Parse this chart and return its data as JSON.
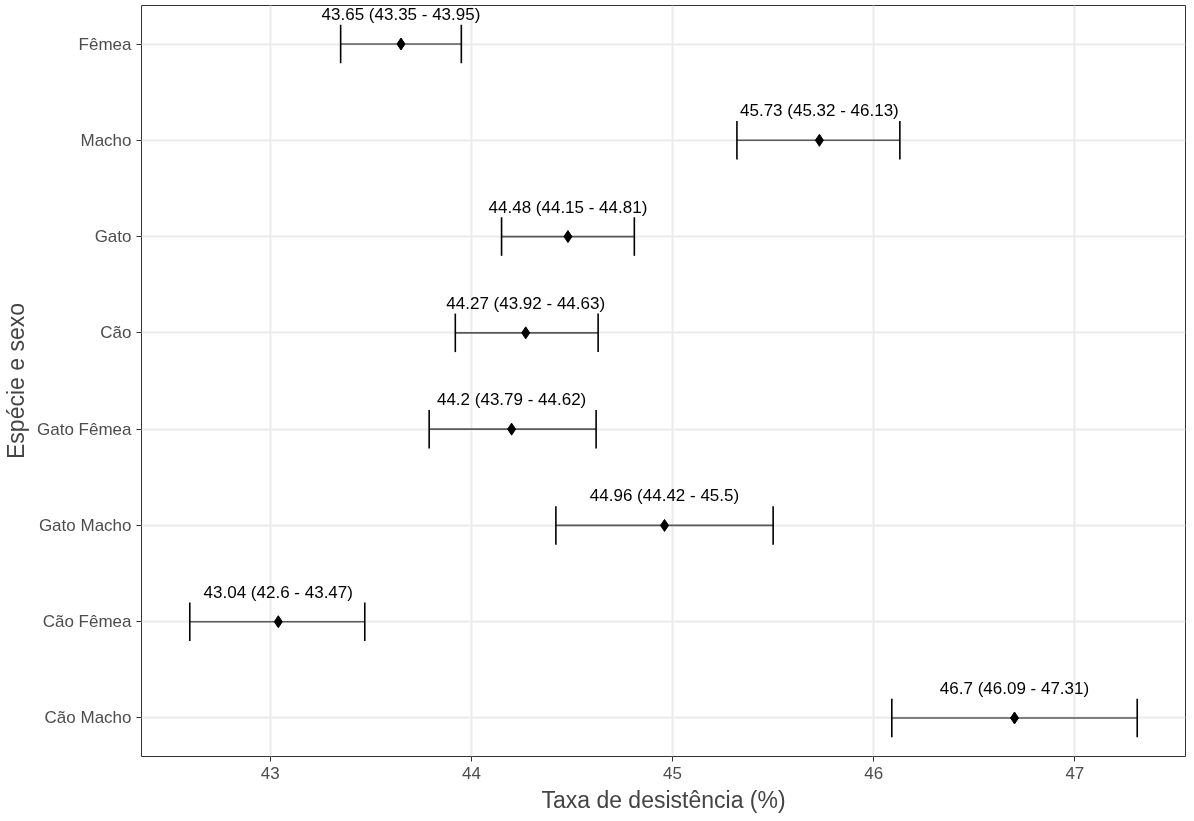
{
  "chart_data": {
    "type": "scatter",
    "orientation": "horizontal",
    "xlabel": "Taxa de desistência (%)",
    "ylabel": "Espécie e sexo",
    "categories": [
      "Fêmea",
      "Macho",
      "Gato",
      "Cão",
      "Gato Fêmea",
      "Gato Macho",
      "Cão Fêmea",
      "Cão Macho"
    ],
    "color": "#000000",
    "values": [
      43.65,
      45.73,
      44.48,
      44.27,
      44.2,
      44.96,
      43.04,
      46.7
    ],
    "errors": [
      [
        43.35,
        43.95
      ],
      [
        45.32,
        46.13
      ],
      [
        44.15,
        44.81
      ],
      [
        43.92,
        44.63
      ],
      [
        43.79,
        44.62
      ],
      [
        44.42,
        45.5
      ],
      [
        42.6,
        43.47
      ],
      [
        46.09,
        47.31
      ]
    ],
    "value_labels": [
      "43.65 (43.35 - 43.95)",
      "45.73 (45.32 - 46.13)",
      "44.48 (44.15 - 44.81)",
      "44.27 (43.92 - 44.63)",
      "44.2 (43.79 - 44.62)",
      "44.96 (44.42 - 45.5)",
      "43.04 (42.6 - 43.47)",
      "46.7 (46.09 - 47.31)"
    ],
    "xlim": [
      42.36,
      47.55
    ],
    "xticks": [
      43,
      44,
      45,
      46,
      47
    ],
    "grid": true,
    "marker": "diamond"
  }
}
